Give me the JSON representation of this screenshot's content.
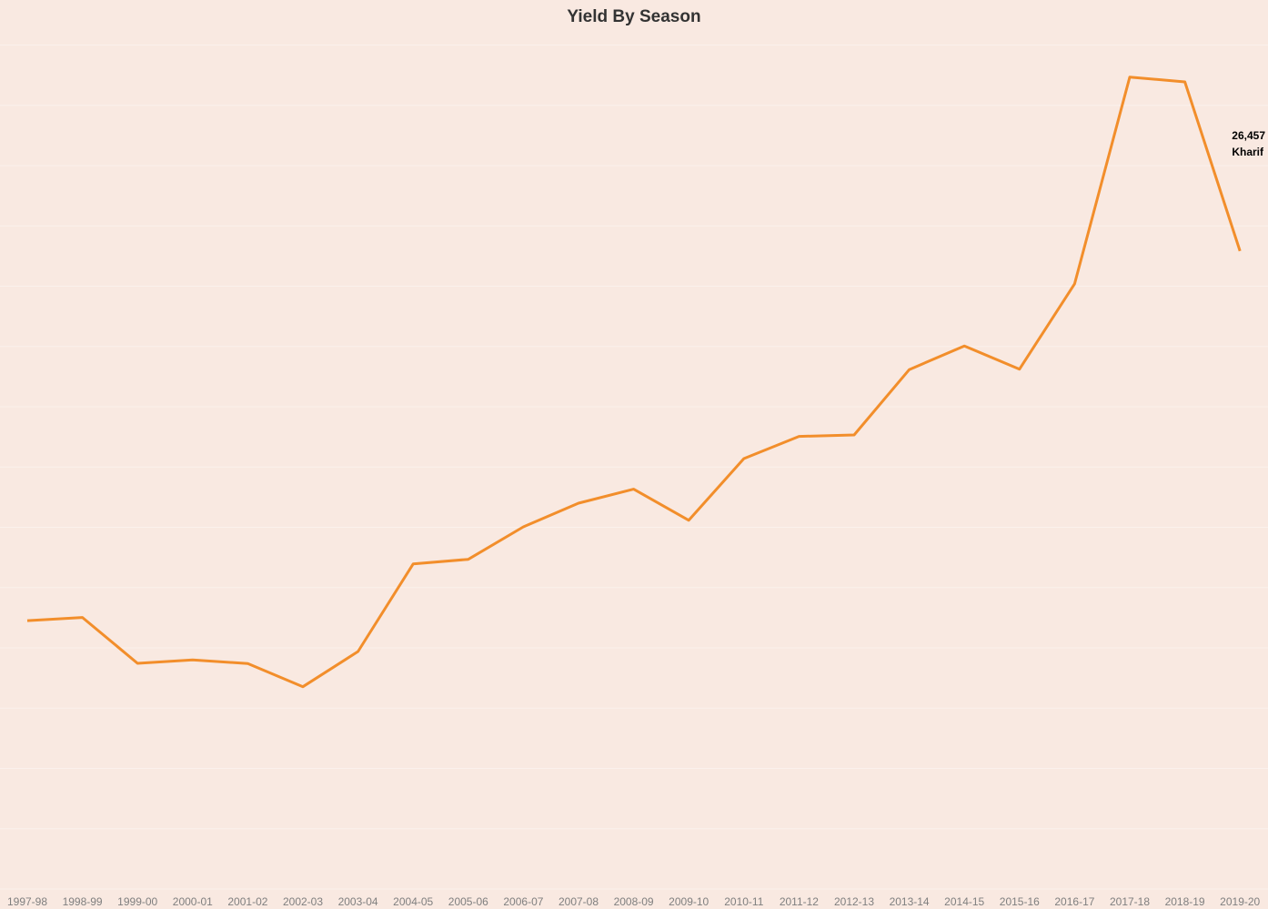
{
  "chart_data": {
    "type": "line",
    "title": "Yield By Season",
    "xlabel": "",
    "ylabel": "",
    "categories": [
      "1997-98",
      "1998-99",
      "1999-00",
      "2000-01",
      "2001-02",
      "2002-03",
      "2003-04",
      "2004-05",
      "2005-06",
      "2006-07",
      "2007-08",
      "2008-09",
      "2009-10",
      "2010-11",
      "2011-12",
      "2012-13",
      "2013-14",
      "2014-15",
      "2015-16",
      "2016-17",
      "2017-18",
      "2018-19",
      "2019-20"
    ],
    "series": [
      {
        "name": "Kharif",
        "values": [
          11130,
          11260,
          9360,
          9500,
          9350,
          8390,
          9850,
          13480,
          13670,
          15020,
          16000,
          16580,
          15290,
          17850,
          18770,
          18830,
          21540,
          22520,
          21560,
          25100,
          33670,
          33470,
          26457
        ]
      }
    ],
    "ylim": [
      0,
      36000
    ],
    "grid": true,
    "end_label": {
      "value": "26,457",
      "series": "Kharif"
    },
    "colors": {
      "background": "#f9e9e1",
      "line": "#f28e2b",
      "gridline": "#fbf1ec"
    }
  }
}
